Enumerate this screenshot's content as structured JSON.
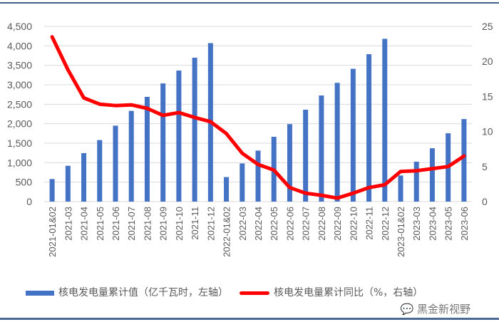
{
  "chart_data": {
    "type": "bar+line",
    "categories": [
      "2021-01&02",
      "2021-03",
      "2021-04",
      "2021-05",
      "2021-06",
      "2021-07",
      "2021-08",
      "2021-09",
      "2021-10",
      "2021-11",
      "2021-12",
      "2022-01&02",
      "2022-03",
      "2022-04",
      "2022-05",
      "2022-06",
      "2022-07",
      "2022-08",
      "2022-09",
      "2022-10",
      "2022-11",
      "2022-12",
      "2023-01&02",
      "2023-03",
      "2023-04",
      "2023-05",
      "2023-06"
    ],
    "series": [
      {
        "name": "核电发电量累计值（亿千瓦时，左轴）",
        "type": "bar",
        "axis": "left",
        "color": "#4472c4",
        "values": [
          580,
          920,
          1245,
          1580,
          1950,
          2330,
          2690,
          3035,
          3365,
          3695,
          4070,
          630,
          980,
          1310,
          1665,
          1990,
          2360,
          2725,
          3050,
          3410,
          3785,
          4180,
          670,
          1025,
          1370,
          1755,
          2120
        ]
      },
      {
        "name": "核电发电量累计同比（%，右轴）",
        "type": "line",
        "axis": "right",
        "color": "#ff0000",
        "values": [
          23.5,
          18.8,
          14.8,
          13.9,
          13.7,
          13.8,
          13.3,
          12.3,
          12.7,
          12.0,
          11.4,
          9.7,
          6.9,
          5.3,
          4.5,
          2.0,
          1.2,
          0.9,
          0.5,
          1.2,
          2.0,
          2.4,
          4.3,
          4.4,
          4.7,
          5.0,
          6.5
        ]
      }
    ],
    "y_left": {
      "lim": [
        0,
        4500
      ],
      "ticks": [
        "0",
        "500",
        "1,000",
        "1,500",
        "2,000",
        "2,500",
        "3,000",
        "3,500",
        "4,000",
        "4,500"
      ]
    },
    "y_right": {
      "lim": [
        0,
        25
      ],
      "ticks": [
        "0",
        "5",
        "10",
        "15",
        "20",
        "25"
      ]
    },
    "grid": true,
    "legend_position": "bottom"
  },
  "legend": {
    "bar_label": "核电发电量累计值（亿千瓦时，左轴）",
    "line_label": "核电发电量累计同比（%，右轴）"
  },
  "watermark": "黑金新视野"
}
